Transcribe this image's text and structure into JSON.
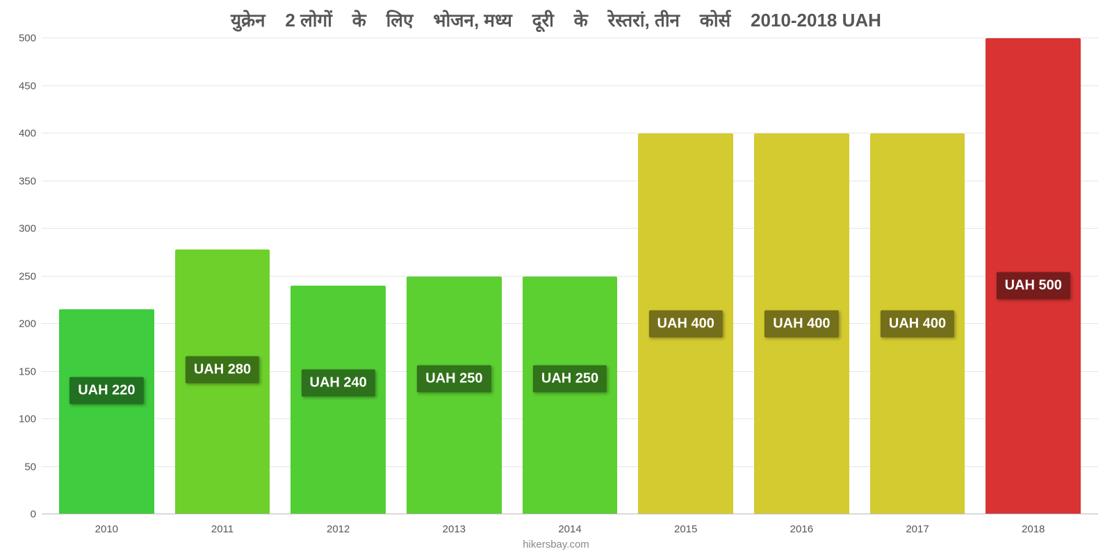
{
  "chart": {
    "type": "bar",
    "title": "युक्रेन    2 लोगों    के    लिए    भोजन, मध्य    दूरी    के    रेस्तरां, तीन    कोर्स    2010-2018 UAH",
    "title_fontsize": 26,
    "title_color": "#565656",
    "attribution": "hikersbay.com",
    "background_color": "#ffffff",
    "grid_color": "#e6e6e6",
    "axis_label_color": "#565656",
    "axis_fontsize": 15,
    "y": {
      "min": 0,
      "max": 500,
      "step": 50,
      "ticks": [
        0,
        50,
        100,
        150,
        200,
        250,
        300,
        350,
        400,
        450,
        500
      ]
    },
    "bar_width_pct": 82,
    "bar_label_fontsize": 20,
    "bar_label_bg": "rgba(0,0,0,0.45)",
    "bar_label_color": "#ffffff",
    "categories": [
      "2010",
      "2011",
      "2012",
      "2013",
      "2014",
      "2015",
      "2016",
      "2017",
      "2018"
    ],
    "bars": [
      {
        "year": "2010",
        "value": 215,
        "label": "UAH 220",
        "color": "#3fcc3e",
        "label_bottom_value": 130
      },
      {
        "year": "2011",
        "value": 278,
        "label": "UAH 280",
        "color": "#6ed02b",
        "label_bottom_value": 152
      },
      {
        "year": "2012",
        "value": 240,
        "label": "UAH 240",
        "color": "#52ce35",
        "label_bottom_value": 138
      },
      {
        "year": "2013",
        "value": 250,
        "label": "UAH 250",
        "color": "#5ccf31",
        "label_bottom_value": 142
      },
      {
        "year": "2014",
        "value": 250,
        "label": "UAH 250",
        "color": "#5ccf31",
        "label_bottom_value": 142
      },
      {
        "year": "2015",
        "value": 400,
        "label": "UAH 400",
        "color": "#d4cb31",
        "label_bottom_value": 200
      },
      {
        "year": "2016",
        "value": 400,
        "label": "UAH 400",
        "color": "#d4cb31",
        "label_bottom_value": 200
      },
      {
        "year": "2017",
        "value": 400,
        "label": "UAH 400",
        "color": "#d4cb31",
        "label_bottom_value": 200
      },
      {
        "year": "2018",
        "value": 500,
        "label": "UAH 500",
        "color": "#d93333",
        "label_bottom_value": 240
      }
    ]
  }
}
